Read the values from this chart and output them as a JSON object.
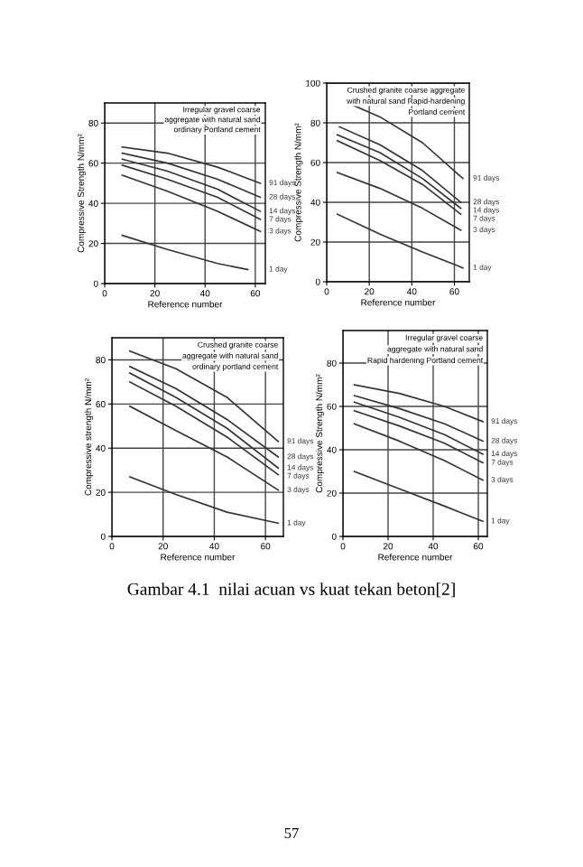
{
  "chart_data": [
    {
      "type": "line",
      "xlabel": "Reference number",
      "ylabel": "Compressive Strength N/mm²",
      "xlim": [
        0,
        64
      ],
      "ylim": [
        0,
        90
      ],
      "xticks": [
        0,
        20,
        40,
        60
      ],
      "yticks": [
        0,
        20,
        40,
        60,
        80
      ],
      "grid": true,
      "legend": false,
      "marker": "none",
      "line_style": "solid",
      "annotations": [
        "Irregular gravel coarse",
        "aggregate with natural sand",
        "ordinary Portland cement"
      ],
      "series": [
        {
          "name": "91 days",
          "color": "#333333",
          "x": [
            7,
            25,
            45,
            62
          ],
          "values": [
            68,
            65,
            58,
            50
          ]
        },
        {
          "name": "28 days",
          "color": "#333333",
          "x": [
            7,
            25,
            45,
            62
          ],
          "values": [
            65,
            60,
            52,
            43
          ]
        },
        {
          "name": "14 days",
          "color": "#333333",
          "x": [
            7,
            25,
            45,
            62
          ],
          "values": [
            62,
            56,
            47,
            36
          ]
        },
        {
          "name": "7 days",
          "color": "#333333",
          "x": [
            7,
            25,
            45,
            62
          ],
          "values": [
            59,
            52,
            43,
            32
          ]
        },
        {
          "name": "3 days",
          "color": "#333333",
          "x": [
            7,
            25,
            45,
            62
          ],
          "values": [
            54,
            46,
            36,
            26
          ]
        },
        {
          "name": "1 day",
          "color": "#333333",
          "x": [
            7,
            25,
            45,
            57
          ],
          "values": [
            24,
            17,
            10,
            7
          ]
        }
      ]
    },
    {
      "type": "line",
      "xlabel": "Reference number",
      "ylabel": "Compressive Strength N/mm²",
      "xlim": [
        0,
        67
      ],
      "ylim": [
        0,
        100
      ],
      "xticks": [
        0,
        20,
        40,
        60
      ],
      "yticks": [
        0,
        20,
        40,
        60,
        80,
        100
      ],
      "grid": true,
      "legend": false,
      "marker": "none",
      "line_style": "solid",
      "annotations": [
        "Crushed granite coarse aggregate",
        "with natural sand Rapid-hardening",
        "Portland cement"
      ],
      "series": [
        {
          "name": "91 days",
          "color": "#333333",
          "x": [
            10,
            25,
            45,
            64
          ],
          "values": [
            90,
            83,
            70,
            52
          ]
        },
        {
          "name": "28 days",
          "color": "#333333",
          "x": [
            6,
            25,
            45,
            63
          ],
          "values": [
            78,
            69,
            56,
            40
          ]
        },
        {
          "name": "14 days",
          "color": "#333333",
          "x": [
            5,
            25,
            45,
            63
          ],
          "values": [
            74,
            65,
            52,
            37
          ]
        },
        {
          "name": "7 days",
          "color": "#333333",
          "x": [
            5,
            25,
            45,
            63
          ],
          "values": [
            71,
            61,
            49,
            34
          ]
        },
        {
          "name": "3 days",
          "color": "#333333",
          "x": [
            5,
            25,
            45,
            63
          ],
          "values": [
            55,
            47,
            37,
            26
          ]
        },
        {
          "name": "1 day",
          "color": "#333333",
          "x": [
            5,
            25,
            45,
            64
          ],
          "values": [
            34,
            24,
            15,
            7
          ]
        }
      ]
    },
    {
      "type": "line",
      "xlabel": "Reference number",
      "ylabel": "Compressive strength N/mm²",
      "xlim": [
        0,
        67
      ],
      "ylim": [
        0,
        90
      ],
      "xticks": [
        0,
        20,
        40,
        60
      ],
      "yticks": [
        0,
        20,
        40,
        60,
        80
      ],
      "grid": true,
      "legend": false,
      "marker": "none",
      "line_style": "solid",
      "annotations": [
        "Crushed granite coarse",
        "aggregate with natural sand",
        "ordinary portland cement"
      ],
      "series": [
        {
          "name": "91 days",
          "color": "#333333",
          "x": [
            7,
            25,
            45,
            65
          ],
          "values": [
            84,
            76,
            63,
            43
          ]
        },
        {
          "name": "28 days",
          "color": "#333333",
          "x": [
            7,
            25,
            45,
            65
          ],
          "values": [
            77,
            67,
            53,
            36
          ]
        },
        {
          "name": "14 days",
          "color": "#333333",
          "x": [
            7,
            25,
            45,
            65
          ],
          "values": [
            74,
            63,
            49,
            31
          ]
        },
        {
          "name": "7 days",
          "color": "#333333",
          "x": [
            7,
            25,
            45,
            65
          ],
          "values": [
            70,
            59,
            45,
            28
          ]
        },
        {
          "name": "3 days",
          "color": "#333333",
          "x": [
            7,
            25,
            45,
            65
          ],
          "values": [
            59,
            48,
            36,
            21
          ]
        },
        {
          "name": "1 day",
          "color": "#333333",
          "x": [
            7,
            25,
            45,
            65
          ],
          "values": [
            27,
            19,
            11,
            6
          ]
        }
      ]
    },
    {
      "type": "line",
      "xlabel": "Reference number",
      "ylabel": "Compressive Strength N/mm²",
      "xlim": [
        0,
        64
      ],
      "ylim": [
        0,
        95
      ],
      "xticks": [
        0,
        20,
        40,
        60
      ],
      "yticks": [
        0,
        20,
        40,
        60,
        80
      ],
      "grid": true,
      "legend": false,
      "marker": "none",
      "line_style": "solid",
      "annotations": [
        "Irregular gravel coarse",
        "aggregate with natural sand",
        "Rapid hardening Portland cement",
        "Gambar 4.1  nilai acuan vs kuat tekan beton[2]",
        "57"
      ],
      "series": [
        {
          "name": "91 days",
          "color": "#333333",
          "x": [
            5,
            25,
            45,
            62
          ],
          "values": [
            70,
            66,
            60,
            53
          ]
        },
        {
          "name": "28 days",
          "color": "#333333",
          "x": [
            5,
            25,
            45,
            62
          ],
          "values": [
            65,
            59,
            52,
            44
          ]
        },
        {
          "name": "14 days",
          "color": "#333333",
          "x": [
            5,
            25,
            45,
            62
          ],
          "values": [
            62,
            55,
            47,
            38
          ]
        },
        {
          "name": "7 days",
          "color": "#333333",
          "x": [
            5,
            25,
            45,
            62
          ],
          "values": [
            58,
            51,
            43,
            34
          ]
        },
        {
          "name": "3 days",
          "color": "#333333",
          "x": [
            5,
            25,
            45,
            62
          ],
          "values": [
            52,
            44,
            35,
            26
          ]
        },
        {
          "name": "1 day",
          "color": "#333333",
          "x": [
            5,
            25,
            45,
            62
          ],
          "values": [
            30,
            22,
            14,
            7
          ]
        }
      ]
    }
  ]
}
